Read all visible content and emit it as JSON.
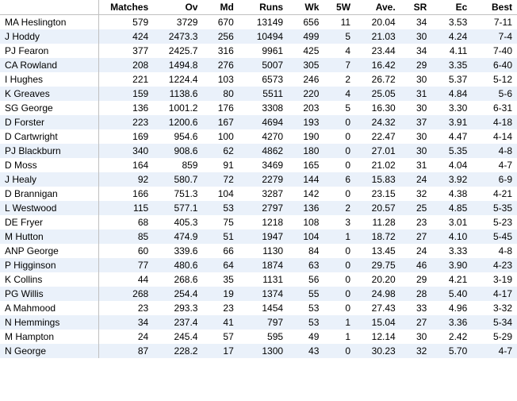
{
  "table": {
    "columns": [
      "",
      "Matches",
      "Ov",
      "Md",
      "Runs",
      "Wk",
      "5W",
      "Ave.",
      "SR",
      "Ec",
      "Best"
    ],
    "rows": [
      [
        "MA Heslington",
        "579",
        "3729",
        "670",
        "13149",
        "656",
        "11",
        "20.04",
        "34",
        "3.53",
        "7-11"
      ],
      [
        "J Hoddy",
        "424",
        "2473.3",
        "256",
        "10494",
        "499",
        "5",
        "21.03",
        "30",
        "4.24",
        "7-4"
      ],
      [
        "PJ Fearon",
        "377",
        "2425.7",
        "316",
        "9961",
        "425",
        "4",
        "23.44",
        "34",
        "4.11",
        "7-40"
      ],
      [
        "CA Rowland",
        "208",
        "1494.8",
        "276",
        "5007",
        "305",
        "7",
        "16.42",
        "29",
        "3.35",
        "6-40"
      ],
      [
        "I Hughes",
        "221",
        "1224.4",
        "103",
        "6573",
        "246",
        "2",
        "26.72",
        "30",
        "5.37",
        "5-12"
      ],
      [
        "K Greaves",
        "159",
        "1138.6",
        "80",
        "5511",
        "220",
        "4",
        "25.05",
        "31",
        "4.84",
        "5-6"
      ],
      [
        "SG George",
        "136",
        "1001.2",
        "176",
        "3308",
        "203",
        "5",
        "16.30",
        "30",
        "3.30",
        "6-31"
      ],
      [
        "D Forster",
        "223",
        "1200.6",
        "167",
        "4694",
        "193",
        "0",
        "24.32",
        "37",
        "3.91",
        "4-18"
      ],
      [
        "D Cartwright",
        "169",
        "954.6",
        "100",
        "4270",
        "190",
        "0",
        "22.47",
        "30",
        "4.47",
        "4-14"
      ],
      [
        "PJ Blackburn",
        "340",
        "908.6",
        "62",
        "4862",
        "180",
        "0",
        "27.01",
        "30",
        "5.35",
        "4-8"
      ],
      [
        "D Moss",
        "164",
        "859",
        "91",
        "3469",
        "165",
        "0",
        "21.02",
        "31",
        "4.04",
        "4-7"
      ],
      [
        "J Healy",
        "92",
        "580.7",
        "72",
        "2279",
        "144",
        "6",
        "15.83",
        "24",
        "3.92",
        "6-9"
      ],
      [
        "D Brannigan",
        "166",
        "751.3",
        "104",
        "3287",
        "142",
        "0",
        "23.15",
        "32",
        "4.38",
        "4-21"
      ],
      [
        "L Westwood",
        "115",
        "577.1",
        "53",
        "2797",
        "136",
        "2",
        "20.57",
        "25",
        "4.85",
        "5-35"
      ],
      [
        "DE Fryer",
        "68",
        "405.3",
        "75",
        "1218",
        "108",
        "3",
        "11.28",
        "23",
        "3.01",
        "5-23"
      ],
      [
        "M Hutton",
        "85",
        "474.9",
        "51",
        "1947",
        "104",
        "1",
        "18.72",
        "27",
        "4.10",
        "5-45"
      ],
      [
        "ANP George",
        "60",
        "339.6",
        "66",
        "1130",
        "84",
        "0",
        "13.45",
        "24",
        "3.33",
        "4-8"
      ],
      [
        "P Higginson",
        "77",
        "480.6",
        "64",
        "1874",
        "63",
        "0",
        "29.75",
        "46",
        "3.90",
        "4-23"
      ],
      [
        "K Collins",
        "44",
        "268.6",
        "35",
        "1131",
        "56",
        "0",
        "20.20",
        "29",
        "4.21",
        "3-19"
      ],
      [
        "PG Willis",
        "268",
        "254.4",
        "19",
        "1374",
        "55",
        "0",
        "24.98",
        "28",
        "5.40",
        "4-17"
      ],
      [
        "A Mahmood",
        "23",
        "293.3",
        "23",
        "1454",
        "53",
        "0",
        "27.43",
        "33",
        "4.96",
        "3-32"
      ],
      [
        "N Hemmings",
        "34",
        "237.4",
        "41",
        "797",
        "53",
        "1",
        "15.04",
        "27",
        "3.36",
        "5-34"
      ],
      [
        "M Hampton",
        "24",
        "245.4",
        "57",
        "595",
        "49",
        "1",
        "12.14",
        "30",
        "2.42",
        "5-29"
      ],
      [
        "N George",
        "87",
        "228.2",
        "17",
        "1300",
        "43",
        "0",
        "30.23",
        "32",
        "5.70",
        "4-7"
      ]
    ],
    "header_bg": "#ffffff",
    "row_odd_bg": "#ffffff",
    "row_even_bg": "#eaf1fa",
    "border_color": "#c0c0c0",
    "font_size": 12
  }
}
